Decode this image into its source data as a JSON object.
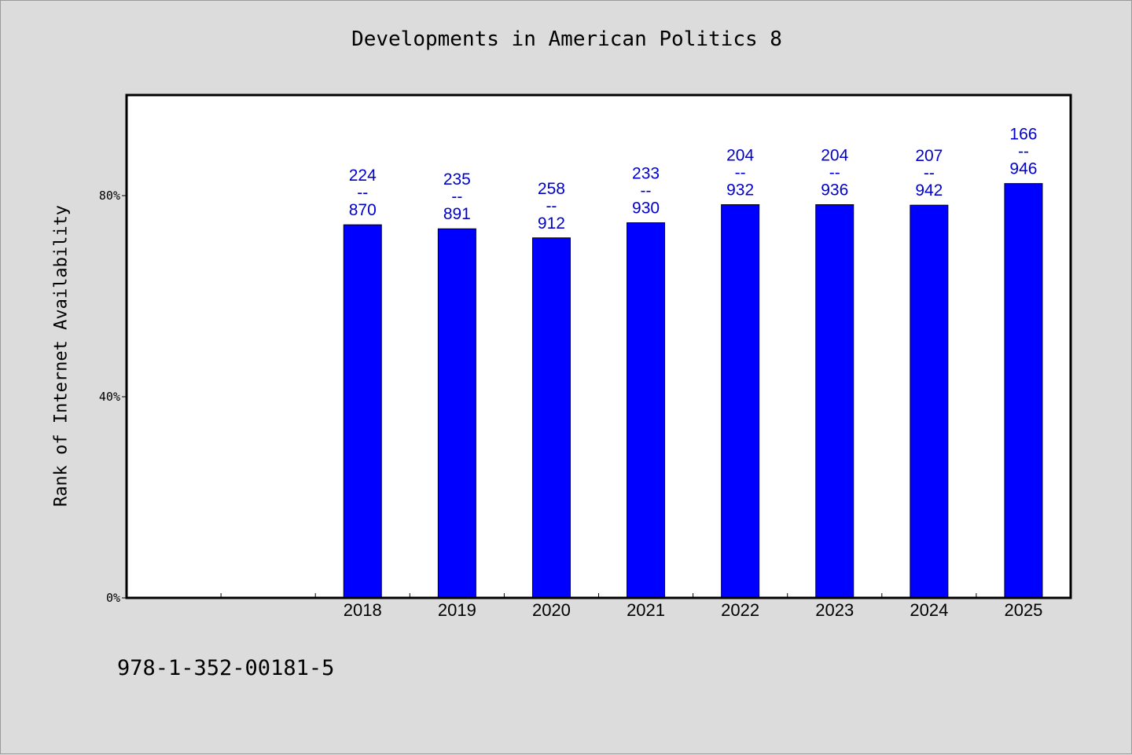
{
  "chart_data": {
    "type": "bar",
    "title": "Developments in American Politics 8",
    "ylabel": "Rank of Internet Availability",
    "xlabel": "",
    "footer": "978-1-352-00181-5",
    "categories": [
      "",
      "",
      "2018",
      "2019",
      "2020",
      "2021",
      "2022",
      "2023",
      "2024",
      "2025"
    ],
    "values": [
      null,
      null,
      74.2,
      73.4,
      71.6,
      74.6,
      78.2,
      78.2,
      78.1,
      82.4
    ],
    "bar_labels": [
      null,
      null,
      {
        "top": "224",
        "mid": "--",
        "bottom": "870"
      },
      {
        "top": "235",
        "mid": "--",
        "bottom": "891"
      },
      {
        "top": "258",
        "mid": "--",
        "bottom": "912"
      },
      {
        "top": "233",
        "mid": "--",
        "bottom": "930"
      },
      {
        "top": "204",
        "mid": "--",
        "bottom": "932"
      },
      {
        "top": "204",
        "mid": "--",
        "bottom": "936"
      },
      {
        "top": "207",
        "mid": "--",
        "bottom": "942"
      },
      {
        "top": "166",
        "mid": "--",
        "bottom": "946"
      }
    ],
    "yticks": [
      {
        "value": 0,
        "label": "0%"
      },
      {
        "value": 40,
        "label": "40%"
      },
      {
        "value": 80,
        "label": "80%"
      }
    ],
    "ylim": [
      0,
      100
    ],
    "grid": false,
    "legend": "none",
    "colors": {
      "bar": "#0000ff",
      "label": "#0000cc",
      "axis": "#000000",
      "plot_bg": "#ffffff",
      "page_bg": "#dcdcdc"
    }
  }
}
